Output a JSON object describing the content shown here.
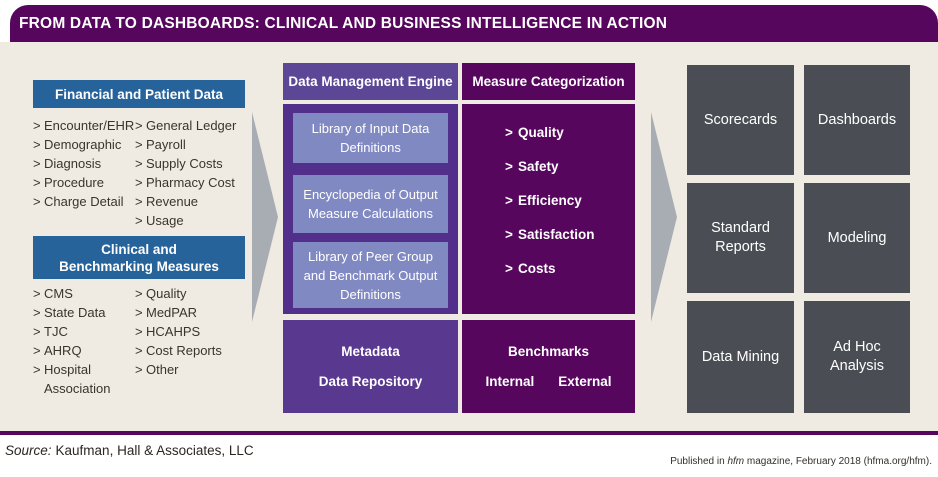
{
  "bullet": ">",
  "colors": {
    "brand_purple": "#57065E",
    "engine_header_purple": "#5B4796",
    "engine_body_purple": "#512F8A",
    "engine_inner_box": "#8089C2",
    "metadata_box_purple": "#59388F",
    "source_header_blue": "#26639B",
    "output_box_gray": "#4A4E54",
    "arrow_gray": "#A8ADB3",
    "background_beige": "#EFEBE3"
  },
  "header": {
    "title": "FROM DATA TO DASHBOARDS: CLINICAL AND BUSINESS INTELLIGENCE IN ACTION"
  },
  "sources": {
    "financial": {
      "title_lines": [
        "Financial and Patient Data"
      ],
      "col1": [
        "Encounter/EHR",
        "Demographic",
        "Diagnosis",
        "Procedure",
        "Charge Detail"
      ],
      "col2": [
        "General Ledger",
        "Payroll",
        "Supply Costs",
        "Pharmacy Cost",
        "Revenue",
        "Usage"
      ]
    },
    "clinical": {
      "title_lines": [
        "Clinical and",
        "Benchmarking Measures"
      ],
      "col1": [
        "CMS",
        "State Data",
        "TJC",
        "AHRQ",
        "Hospital Association"
      ],
      "col2": [
        "Quality",
        "MedPAR",
        "HCAHPS",
        "Cost Reports",
        "Other"
      ]
    }
  },
  "engine": {
    "title": "Data Management Engine",
    "boxes": [
      "Library of Input Data Definitions",
      "Encyclopedia of Output Measure Calculations",
      "Library of Peer Group and Benchmark Output Definitions"
    ],
    "metadata": {
      "line1": "Metadata",
      "line2": "Data Repository"
    }
  },
  "categorization": {
    "title": "Measure Categorization",
    "items": [
      "Quality",
      "Safety",
      "Efficiency",
      "Satisfaction",
      "Costs"
    ],
    "benchmarks": {
      "title": "Benchmarks",
      "internal": "Internal",
      "external": "External"
    }
  },
  "outputs": {
    "cells": [
      "Scorecards",
      "Dashboards",
      "Standard Reports",
      "Modeling",
      "Data Mining",
      "Ad Hoc Analysis"
    ]
  },
  "footer": {
    "source_label": "Source:",
    "source_text": "Kaufman, Hall & Associates, LLC",
    "published_prefix": "Published in ",
    "published_magazine": "hfm",
    "published_suffix": " magazine, February 2018 (hfma.org/hfm)."
  }
}
